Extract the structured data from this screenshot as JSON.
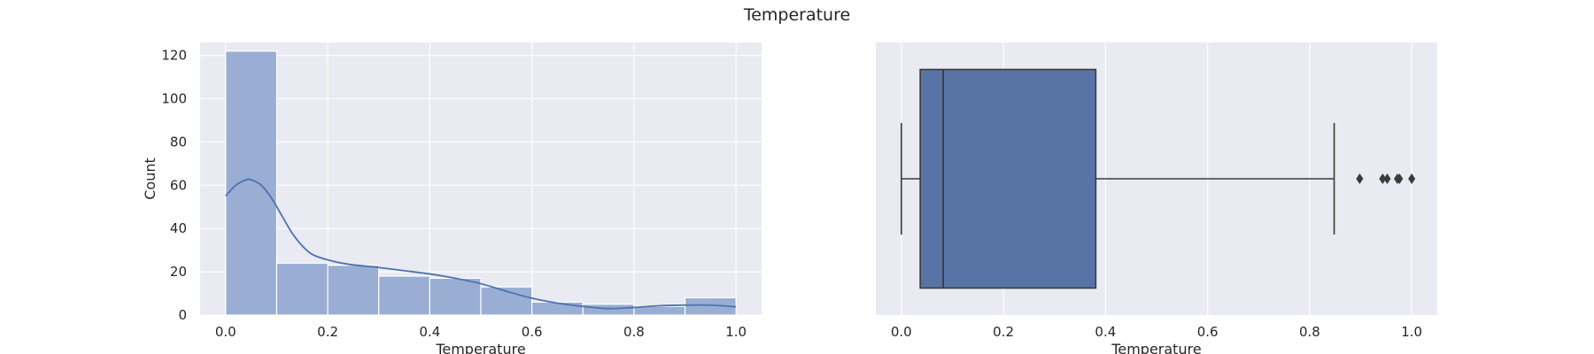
{
  "figure": {
    "title": "Temperature"
  },
  "chart_data": [
    {
      "type": "bar",
      "subtype": "histogram-with-kde",
      "title": "",
      "xlabel": "Temperature",
      "ylabel": "Count",
      "xlim": [
        -0.05,
        1.05
      ],
      "ylim": [
        0,
        126
      ],
      "xticks": [
        0.0,
        0.2,
        0.4,
        0.6,
        0.8,
        1.0
      ],
      "xtick_labels": [
        "0.0",
        "0.2",
        "0.4",
        "0.6",
        "0.8",
        "1.0"
      ],
      "yticks": [
        0,
        20,
        40,
        60,
        80,
        100,
        120
      ],
      "ytick_labels": [
        "0",
        "20",
        "40",
        "60",
        "80",
        "100",
        "120"
      ],
      "bins": [
        {
          "x0": 0.0,
          "x1": 0.1,
          "count": 122
        },
        {
          "x0": 0.1,
          "x1": 0.2,
          "count": 24
        },
        {
          "x0": 0.2,
          "x1": 0.3,
          "count": 23
        },
        {
          "x0": 0.3,
          "x1": 0.4,
          "count": 18
        },
        {
          "x0": 0.4,
          "x1": 0.5,
          "count": 17
        },
        {
          "x0": 0.5,
          "x1": 0.6,
          "count": 13
        },
        {
          "x0": 0.6,
          "x1": 0.7,
          "count": 6
        },
        {
          "x0": 0.7,
          "x1": 0.8,
          "count": 5
        },
        {
          "x0": 0.8,
          "x1": 0.9,
          "count": 4
        },
        {
          "x0": 0.9,
          "x1": 1.0,
          "count": 8
        }
      ],
      "kde": {
        "x": [
          0.0,
          0.02,
          0.04,
          0.05,
          0.07,
          0.09,
          0.11,
          0.13,
          0.15,
          0.17,
          0.2,
          0.24,
          0.3,
          0.35,
          0.4,
          0.45,
          0.5,
          0.55,
          0.6,
          0.65,
          0.7,
          0.75,
          0.8,
          0.85,
          0.9,
          0.95,
          1.0
        ],
        "y": [
          55,
          60,
          62.5,
          62.5,
          60,
          54,
          46,
          38,
          32,
          28,
          25.5,
          23.5,
          22,
          20.5,
          19,
          17,
          14.5,
          11,
          7.8,
          5.5,
          4,
          3,
          3.5,
          4.3,
          4.6,
          4.6,
          3.8
        ]
      },
      "grid": true,
      "colors": {
        "bar": "#9aaed4",
        "bar_edge": "#ffffff",
        "kde": "#4c72b0",
        "background": "#eaeaf2",
        "grid": "#ffffff"
      }
    },
    {
      "type": "boxplot",
      "title": "",
      "xlabel": "Temperature",
      "ylabel": "",
      "xlim": [
        -0.05,
        1.05
      ],
      "xticks": [
        0.0,
        0.2,
        0.4,
        0.6,
        0.8,
        1.0
      ],
      "xtick_labels": [
        "0.0",
        "0.2",
        "0.4",
        "0.6",
        "0.8",
        "1.0"
      ],
      "whisker_low": 0.0,
      "q1": 0.037,
      "median": 0.082,
      "q3": 0.381,
      "whisker_high": 0.848,
      "outliers": [
        0.898,
        0.943,
        0.952,
        0.972,
        0.976,
        1.0
      ],
      "grid": true,
      "colors": {
        "box": "#5874a6",
        "line": "#3b3b3b",
        "background": "#eaeaf2",
        "grid": "#ffffff"
      }
    }
  ]
}
